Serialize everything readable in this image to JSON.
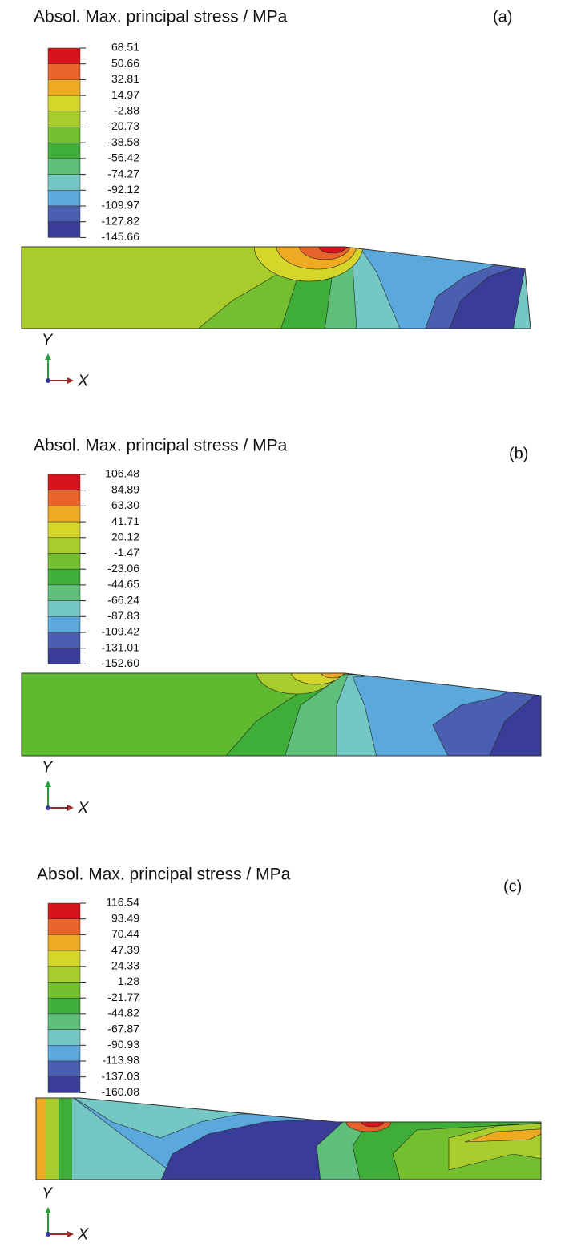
{
  "panels": [
    {
      "title": "Absol. Max. principal stress / MPa",
      "label": "(a)",
      "legend": [
        "68.51",
        "50.66",
        "32.81",
        "14.97",
        "-2.88",
        "-20.73",
        "-38.58",
        "-56.42",
        "-74.27",
        "-92.12",
        "-109.97",
        "-127.82",
        "-145.66"
      ],
      "axis_y": "Y",
      "axis_x": "X"
    },
    {
      "title": "Absol. Max. principal stress / MPa",
      "label": "(b)",
      "legend": [
        "106.48",
        "84.89",
        "63.30",
        "41.71",
        "20.12",
        "-1.47",
        "-23.06",
        "-44.65",
        "-66.24",
        "-87.83",
        "-109.42",
        "-131.01",
        "-152.60"
      ],
      "axis_y": "Y",
      "axis_x": "X"
    },
    {
      "title": "Absol. Max. principal stress / MPa",
      "label": "(c)",
      "legend": [
        "116.54",
        "93.49",
        "70.44",
        "47.39",
        "24.33",
        "1.28",
        "-21.77",
        "-44.82",
        "-67.87",
        "-90.93",
        "-113.98",
        "-137.03",
        "-160.08"
      ],
      "axis_y": "Y",
      "axis_x": "X"
    }
  ]
}
